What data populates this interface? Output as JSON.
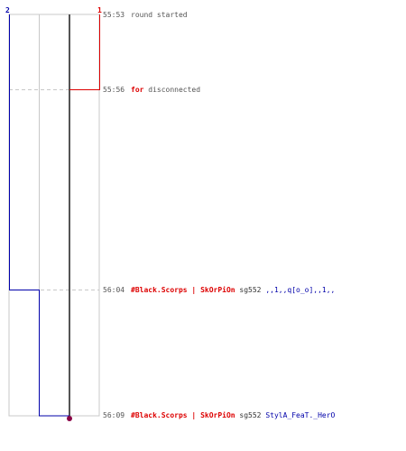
{
  "team_scores": {
    "left": "2",
    "right": "1"
  },
  "colors": {
    "blue_team": "#0000aa",
    "red_team": "#dd0000",
    "grid": "#c8c8c8",
    "timeline": "#555555",
    "marker": "#880044",
    "text": "#555555"
  },
  "events": [
    {
      "time": "55:53",
      "parts": [
        {
          "text": "round started",
          "color": "#555555",
          "bold": false
        }
      ]
    },
    {
      "time": "55:56",
      "parts": [
        {
          "text": "for",
          "color": "#dd0000",
          "bold": true
        },
        {
          "text": " disconnected",
          "color": "#555555",
          "bold": false
        }
      ]
    },
    {
      "time": "56:04",
      "parts": [
        {
          "text": "#Black.Scorps | SkOrPiOn",
          "color": "#dd0000",
          "bold": true
        },
        {
          "text": " sg552 ",
          "color": "#333333",
          "bold": false
        },
        {
          "text": ",,1,,q[o_o],,1,,",
          "color": "#0000aa",
          "bold": false
        }
      ]
    },
    {
      "time": "56:09",
      "parts": [
        {
          "text": "#Black.Scorps | SkOrPiOn",
          "color": "#dd0000",
          "bold": true
        },
        {
          "text": " sg552 ",
          "color": "#333333",
          "bold": false
        },
        {
          "text": "StylA_FeaT._HerO",
          "color": "#0000aa",
          "bold": false
        }
      ]
    }
  ]
}
